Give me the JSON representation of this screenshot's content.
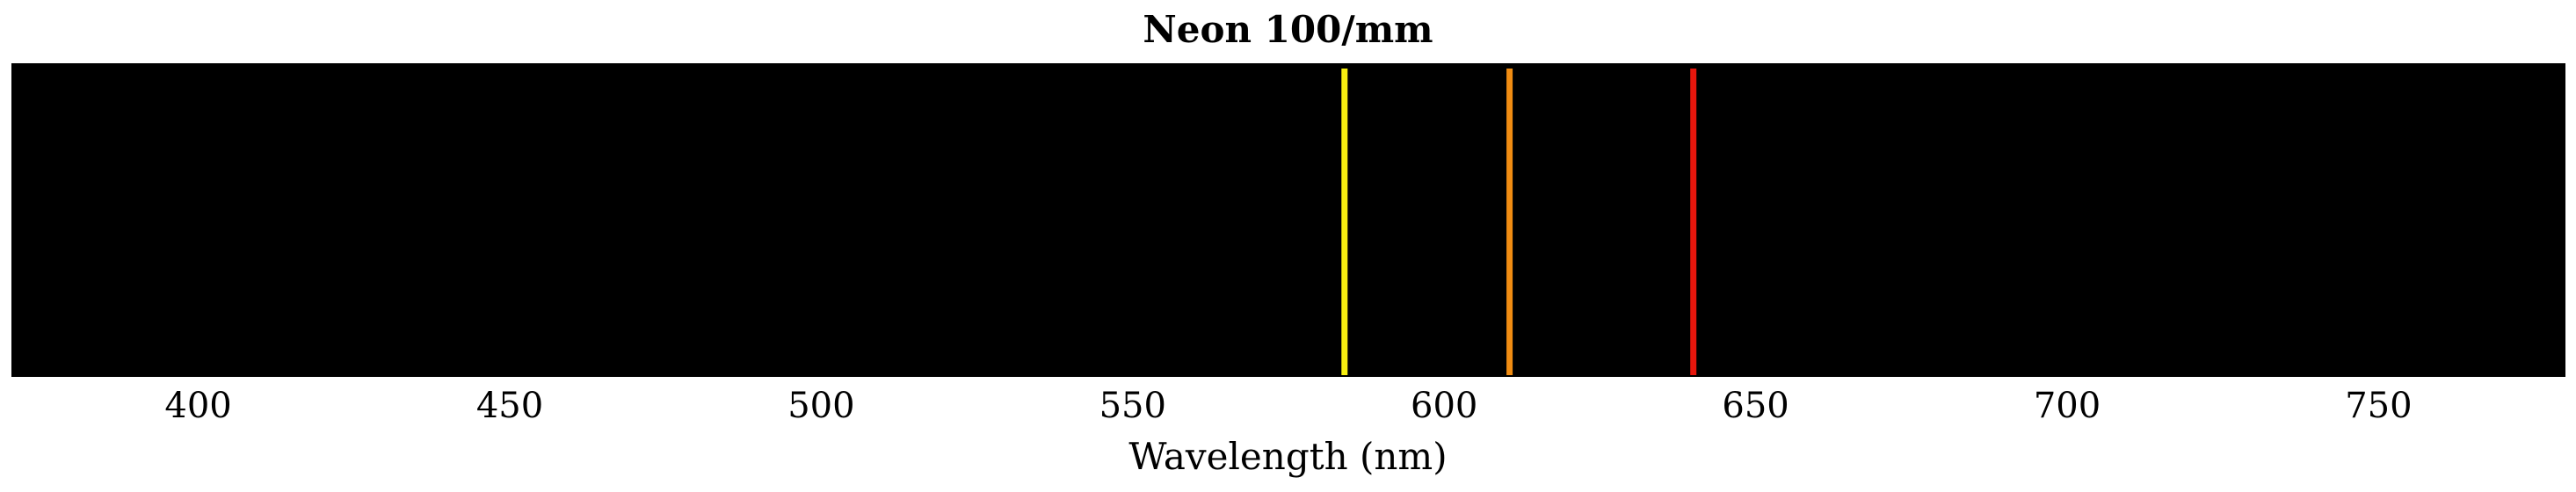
{
  "chart_data": {
    "type": "spectrum",
    "title": "Neon 100/mm",
    "xlabel": "Wavelength (nm)",
    "xlim": [
      370,
      780
    ],
    "xticks": [
      400,
      450,
      500,
      550,
      600,
      650,
      700,
      750
    ],
    "background_color": "#000000",
    "grid": false,
    "lines": [
      {
        "wavelength": 584,
        "color": "#f7ef10"
      },
      {
        "wavelength": 610.5,
        "color": "#f08c12"
      },
      {
        "wavelength": 640,
        "color": "#e8160c"
      }
    ]
  }
}
